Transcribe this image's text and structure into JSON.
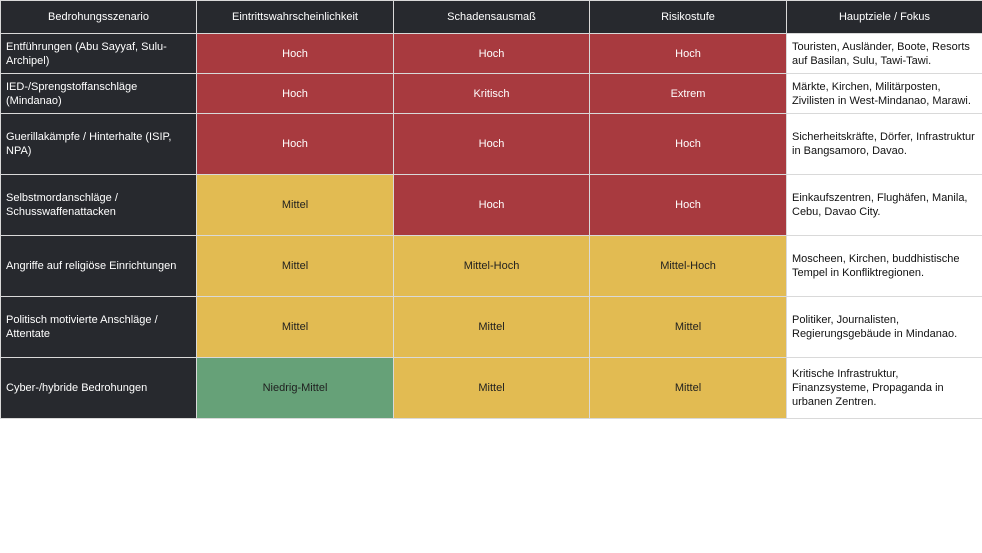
{
  "colors": {
    "header_bg": "#27292e",
    "hoch": "#a83a3f",
    "mittel": "#e2bb52",
    "niedrig_mittel": "#66a178"
  },
  "table": {
    "headers": [
      "Bedrohungsszenario",
      "Eintrittswahrscheinlichkeit",
      "Schadensausmaß",
      "Risikostufe",
      "Hauptziele / Fokus"
    ],
    "rows": [
      {
        "scenario": "Entführungen (Abu Sayyaf, Sulu-Archipel)",
        "probability": "Hoch",
        "impact": "Hoch",
        "risk": "Hoch",
        "focus": "Touristen, Ausländer, Boote, Resorts auf Basilan, Sulu, Tawi-Tawi."
      },
      {
        "scenario": "IED-/Sprengstoffanschläge (Mindanao)",
        "probability": "Hoch",
        "impact": "Kritisch",
        "risk": "Extrem",
        "focus": "Märkte, Kirchen, Militärposten, Zivilisten in West-Mindanao, Marawi."
      },
      {
        "scenario": "Guerillakämpfe / Hinterhalte (ISIP, NPA)",
        "probability": "Hoch",
        "impact": "Hoch",
        "risk": "Hoch",
        "focus": "Sicherheitskräfte, Dörfer, Infrastruktur in Bangsamoro, Davao."
      },
      {
        "scenario": "Selbstmordanschläge / Schusswaffenattacken",
        "probability": "Mittel",
        "impact": "Hoch",
        "risk": "Hoch",
        "focus": "Einkaufszentren, Flughäfen, Manila, Cebu, Davao City."
      },
      {
        "scenario": "Angriffe auf religiöse Einrichtungen",
        "probability": "Mittel",
        "impact": "Mittel-Hoch",
        "risk": "Mittel-Hoch",
        "focus": "Moscheen, Kirchen, buddhistische Tempel in Konfliktregionen."
      },
      {
        "scenario": "Politisch motivierte Anschläge / Attentate",
        "probability": "Mittel",
        "impact": "Mittel",
        "risk": "Mittel",
        "focus": "Politiker, Journalisten, Regierungsgebäude in Mindanao."
      },
      {
        "scenario": "Cyber-/hybride Bedrohungen",
        "probability": "Niedrig-Mittel",
        "impact": "Mittel",
        "risk": "Mittel",
        "focus": "Kritische Infrastruktur, Finanzsysteme, Propaganda in urbanen Zentren."
      }
    ]
  }
}
